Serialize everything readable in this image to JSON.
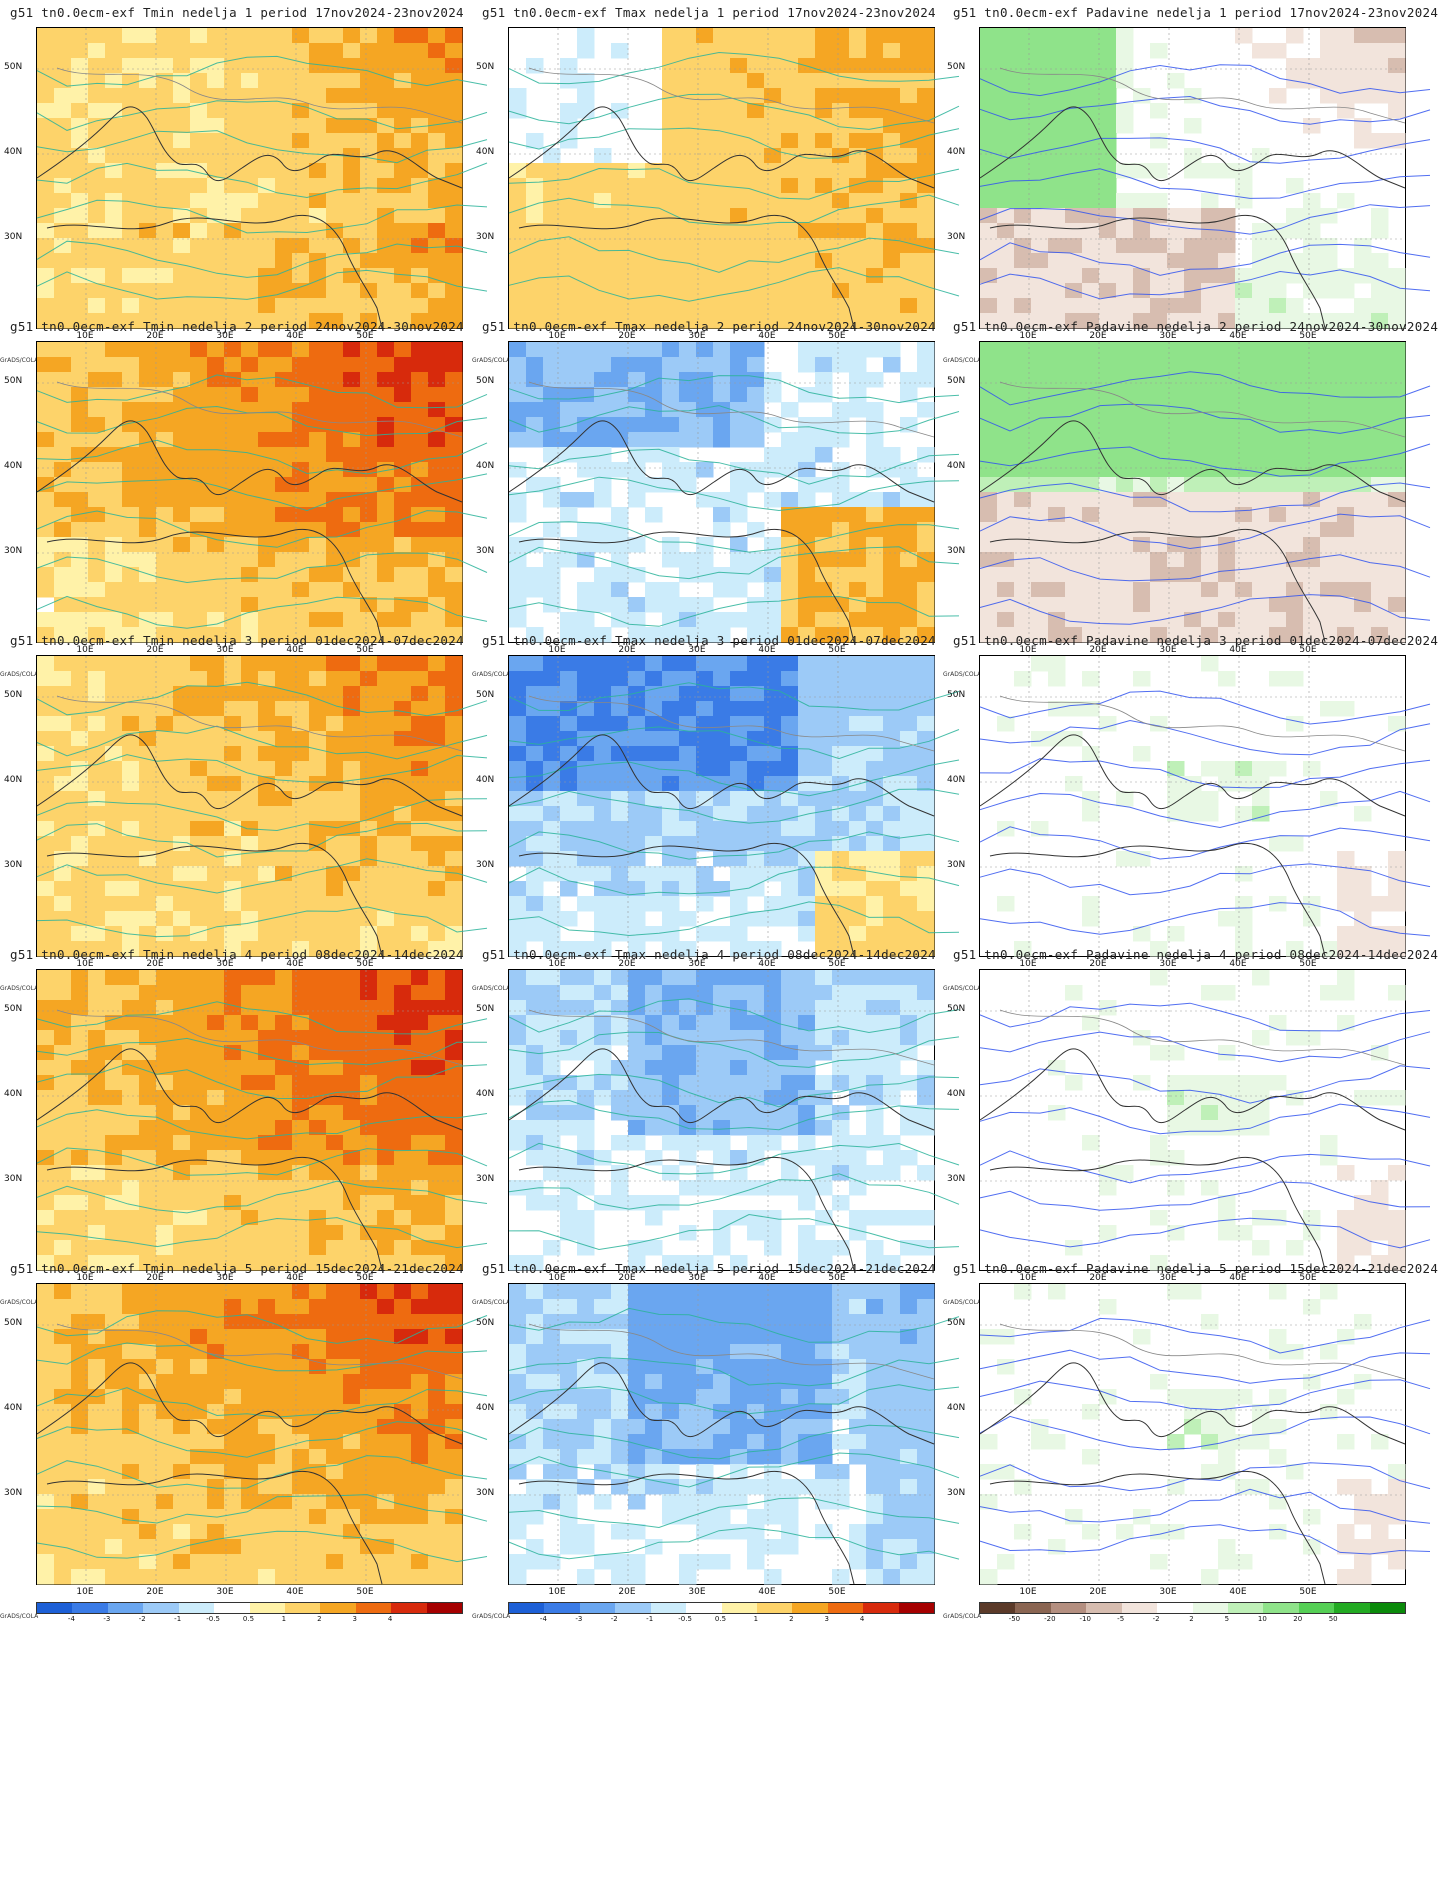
{
  "page": {
    "grads_label": "GrADS/COLA",
    "y_ticks": [
      "50N",
      "40N",
      "30N"
    ],
    "x_ticks": [
      "10E",
      "20E",
      "30E",
      "40E",
      "50E"
    ]
  },
  "colorbars": {
    "temperature": {
      "labels": [
        "-4",
        "-3",
        "-2",
        "-1",
        "-0.5",
        "0.5",
        "1",
        "2",
        "3",
        "4"
      ],
      "colors": [
        "#1c5fd6",
        "#3a7be6",
        "#6aa6f0",
        "#9ccaf7",
        "#ccecfb",
        "#ffffff",
        "#fff2a8",
        "#fdd36a",
        "#f5a623",
        "#ee6b10",
        "#d72a0c",
        "#a50000"
      ]
    },
    "precipitation": {
      "labels": [
        "-50",
        "-20",
        "-10",
        "-5",
        "-2",
        "2",
        "5",
        "10",
        "20",
        "50"
      ],
      "colors": [
        "#5b3a29",
        "#8a6552",
        "#b48f80",
        "#d7bdb0",
        "#f2e4dc",
        "#ffffff",
        "#e8f8e4",
        "#bff0b8",
        "#8fe38a",
        "#55cf55",
        "#22aa22",
        "#0a8a0a"
      ]
    }
  },
  "panels": [
    {
      "title": "g51 tn0.0ecm-exf Tmin nedelja 1 period 17nov2024-23nov2024",
      "variable": "Tmin",
      "week": 1,
      "period": "17nov2024-23nov2024"
    },
    {
      "title": "g51 tn0.0ecm-exf Tmax nedelja 1 period 17nov2024-23nov2024",
      "variable": "Tmax",
      "week": 1,
      "period": "17nov2024-23nov2024"
    },
    {
      "title": "g51 tn0.0ecm-exf Padavine nedelja 1 period 17nov2024-23nov2024",
      "variable": "Padavine",
      "week": 1,
      "period": "17nov2024-23nov2024"
    },
    {
      "title": "g51 tn0.0ecm-exf Tmin nedelja 2 period 24nov2024-30nov2024",
      "variable": "Tmin",
      "week": 2,
      "period": "24nov2024-30nov2024"
    },
    {
      "title": "g51 tn0.0ecm-exf Tmax nedelja 2 period 24nov2024-30nov2024",
      "variable": "Tmax",
      "week": 2,
      "period": "24nov2024-30nov2024"
    },
    {
      "title": "g51 tn0.0ecm-exf Padavine nedelja 2 period 24nov2024-30nov2024",
      "variable": "Padavine",
      "week": 2,
      "period": "24nov2024-30nov2024"
    },
    {
      "title": "g51 tn0.0ecm-exf Tmin nedelja 3 period 01dec2024-07dec2024",
      "variable": "Tmin",
      "week": 3,
      "period": "01dec2024-07dec2024"
    },
    {
      "title": "g51 tn0.0ecm-exf Tmax nedelja 3 period 01dec2024-07dec2024",
      "variable": "Tmax",
      "week": 3,
      "period": "01dec2024-07dec2024"
    },
    {
      "title": "g51 tn0.0ecm-exf Padavine nedelja 3 period 01dec2024-07dec2024",
      "variable": "Padavine",
      "week": 3,
      "period": "01dec2024-07dec2024"
    },
    {
      "title": "g51 tn0.0ecm-exf Tmin nedelja 4 period 08dec2024-14dec2024",
      "variable": "Tmin",
      "week": 4,
      "period": "08dec2024-14dec2024"
    },
    {
      "title": "g51 tn0.0ecm-exf Tmax nedelja 4 period 08dec2024-14dec2024",
      "variable": "Tmax",
      "week": 4,
      "period": "08dec2024-14dec2024"
    },
    {
      "title": "g51 tn0.0ecm-exf Padavine nedelja 4 period 08dec2024-14dec2024",
      "variable": "Padavine",
      "week": 4,
      "period": "08dec2024-14dec2024"
    },
    {
      "title": "g51 tn0.0ecm-exf Tmin nedelja 5 period 15dec2024-21dec2024",
      "variable": "Tmin",
      "week": 5,
      "period": "15dec2024-21dec2024"
    },
    {
      "title": "g51 tn0.0ecm-exf Tmax nedelja 5 period 15dec2024-21dec2024",
      "variable": "Tmax",
      "week": 5,
      "period": "15dec2024-21dec2024"
    },
    {
      "title": "g51 tn0.0ecm-exf Padavine nedelja 5 period 15dec2024-21dec2024",
      "variable": "Padavine",
      "week": 5,
      "period": "15dec2024-21dec2024"
    }
  ]
}
